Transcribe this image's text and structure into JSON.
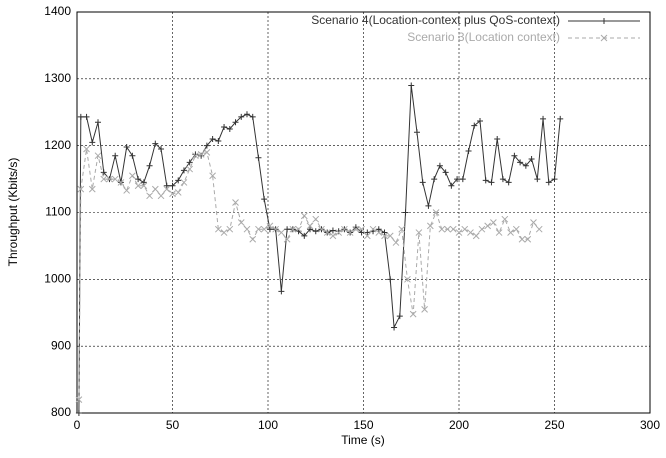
{
  "chart_data": {
    "type": "line",
    "xlabel": "Time (s)",
    "ylabel": "Throughput (Kbits/s)",
    "xlim": [
      0,
      300
    ],
    "xticks": [
      0,
      50,
      100,
      150,
      200,
      250,
      300
    ],
    "ylim": [
      800,
      1400
    ],
    "yticks": [
      800,
      900,
      1000,
      1100,
      1200,
      1300,
      1400
    ],
    "grid": true,
    "legend": "top-right",
    "series": [
      {
        "name": "Scenario 4(Location-context plus QoS-context)",
        "color": "#333333",
        "dash": "solid",
        "marker": "+",
        "x": [
          1,
          2,
          5,
          8,
          11,
          14,
          17,
          20,
          23,
          26,
          29,
          32,
          35,
          38,
          41,
          44,
          47,
          50,
          53,
          56,
          59,
          62,
          65,
          68,
          71,
          74,
          77,
          80,
          83,
          86,
          89,
          92,
          95,
          98,
          101,
          104,
          107,
          110,
          113,
          116,
          119,
          122,
          125,
          128,
          131,
          134,
          137,
          140,
          143,
          146,
          149,
          152,
          155,
          158,
          161,
          164,
          166,
          169,
          172,
          175,
          178,
          181,
          184,
          187,
          190,
          193,
          196,
          199,
          202,
          205,
          208,
          211,
          214,
          217,
          220,
          223,
          226,
          229,
          232,
          235,
          238,
          241,
          244,
          247,
          250,
          253
        ],
        "values": [
          800,
          1243,
          1243,
          1205,
          1235,
          1160,
          1150,
          1185,
          1145,
          1198,
          1185,
          1150,
          1145,
          1170,
          1203,
          1195,
          1140,
          1140,
          1148,
          1163,
          1175,
          1187,
          1185,
          1200,
          1210,
          1207,
          1228,
          1225,
          1235,
          1243,
          1247,
          1243,
          1182,
          1120,
          1075,
          1075,
          982,
          1075,
          1075,
          1072,
          1065,
          1075,
          1072,
          1075,
          1070,
          1073,
          1072,
          1075,
          1070,
          1078,
          1070,
          1070,
          1072,
          1075,
          1070,
          1000,
          928,
          945,
          1100,
          1290,
          1220,
          1145,
          1110,
          1150,
          1170,
          1160,
          1140,
          1150,
          1150,
          1192,
          1230,
          1237,
          1148,
          1145,
          1210,
          1150,
          1145,
          1185,
          1175,
          1170,
          1180,
          1150,
          1240,
          1145,
          1150,
          1240
        ]
      },
      {
        "name": "Scenario 3(Location context)",
        "color": "#aaaaaa",
        "dash": "dashed",
        "marker": "x",
        "x": [
          1,
          2,
          5,
          8,
          11,
          14,
          17,
          20,
          23,
          26,
          29,
          32,
          35,
          38,
          41,
          44,
          47,
          50,
          53,
          56,
          59,
          62,
          65,
          68,
          71,
          74,
          77,
          80,
          83,
          86,
          89,
          92,
          95,
          98,
          101,
          104,
          107,
          110,
          113,
          116,
          119,
          122,
          125,
          128,
          131,
          134,
          137,
          140,
          143,
          146,
          149,
          152,
          155,
          158,
          161,
          164,
          167,
          170,
          173,
          176,
          179,
          182,
          185,
          188,
          191,
          194,
          197,
          200,
          203,
          206,
          209,
          212,
          215,
          218,
          221,
          224,
          227,
          230,
          233,
          236,
          239,
          242
        ],
        "values": [
          820,
          1135,
          1195,
          1135,
          1185,
          1150,
          1150,
          1150,
          1145,
          1133,
          1155,
          1140,
          1140,
          1125,
          1135,
          1125,
          1135,
          1128,
          1130,
          1145,
          1165,
          1185,
          1187,
          1190,
          1155,
          1075,
          1070,
          1075,
          1115,
          1085,
          1075,
          1060,
          1075,
          1075,
          1080,
          1075,
          1070,
          1060,
          1075,
          1075,
          1095,
          1080,
          1090,
          1075,
          1070,
          1065,
          1070,
          1075,
          1070,
          1075,
          1075,
          1065,
          1075,
          1070,
          1065,
          1065,
          1055,
          1075,
          1000,
          948,
          1070,
          955,
          1080,
          1100,
          1075,
          1075,
          1075,
          1070,
          1075,
          1070,
          1065,
          1075,
          1080,
          1085,
          1070,
          1090,
          1070,
          1075,
          1060,
          1060,
          1085,
          1075
        ]
      }
    ]
  }
}
